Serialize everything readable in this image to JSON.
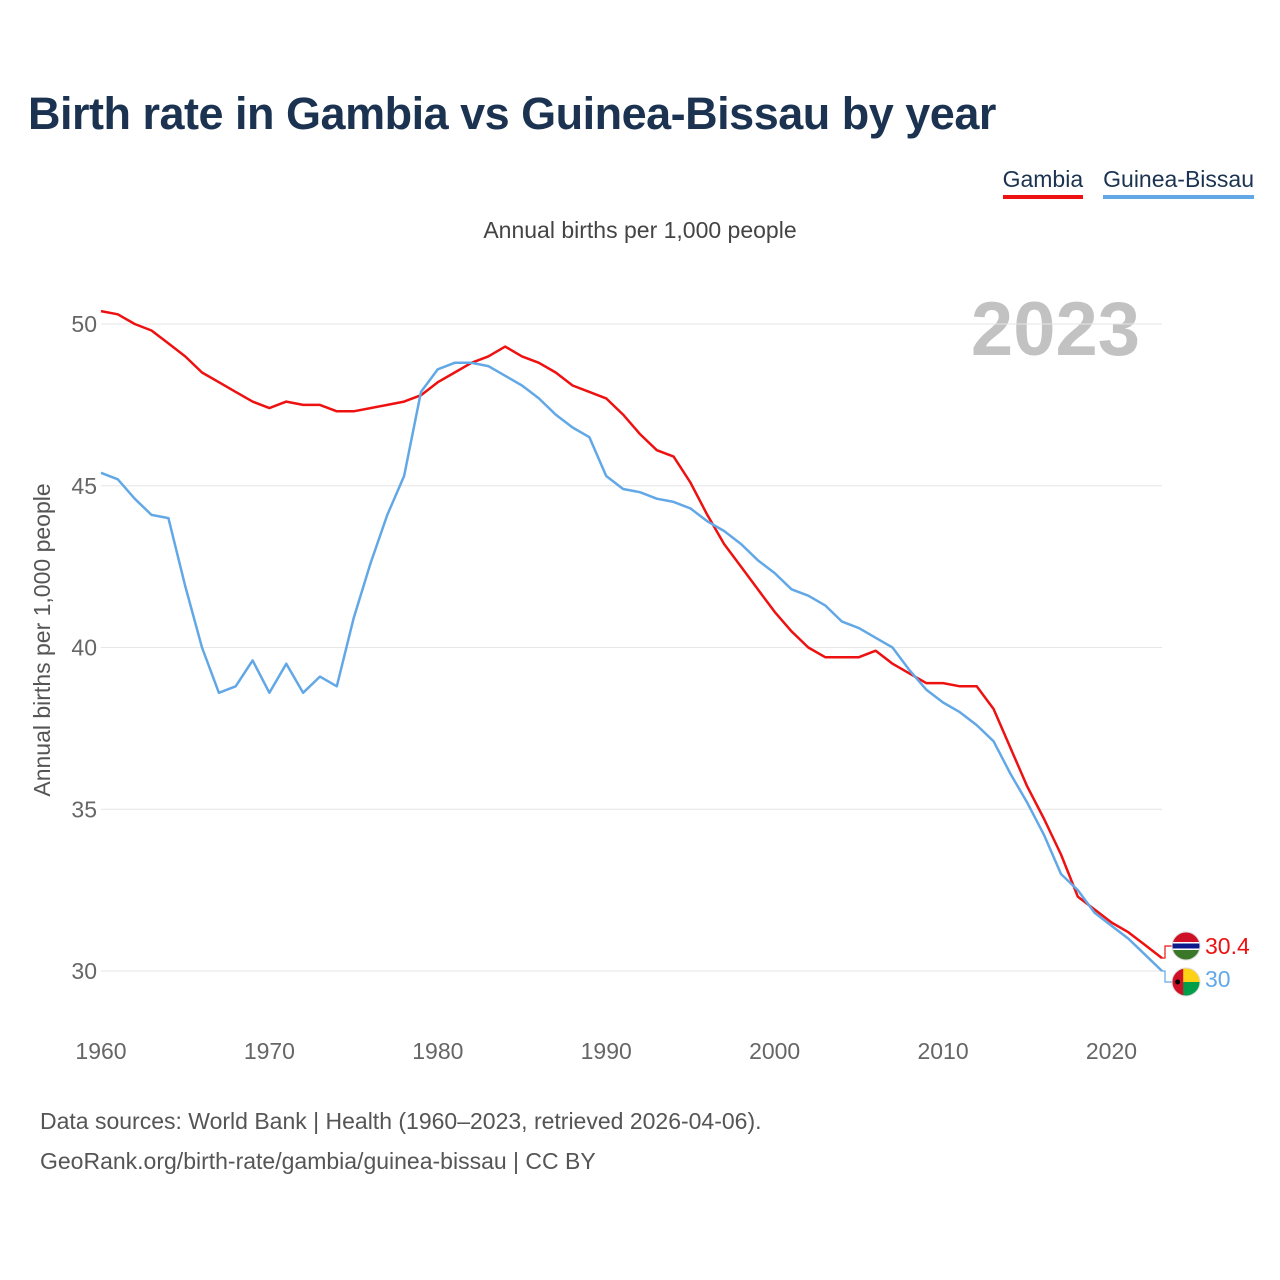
{
  "title": "Birth rate in Gambia vs Guinea-Bissau by year",
  "subtitle": "Annual births per 1,000 people",
  "year_display": "2023",
  "legend": [
    {
      "name": "Gambia",
      "color": "#ee1111"
    },
    {
      "name": "Guinea-Bissau",
      "color": "#62a8e6"
    }
  ],
  "footer": {
    "line1": "Data sources: World Bank | Health (1960–2023, retrieved 2026-04-06).",
    "line2": "GeoRank.org/birth-rate/gambia/guinea-bissau | CC BY"
  },
  "chart_data": {
    "type": "line",
    "title": "Birth rate in Gambia vs Guinea-Bissau by year",
    "xlabel": "",
    "ylabel": "Annual births per 1,000 people",
    "xlim": [
      1960,
      2023
    ],
    "ylim": [
      29,
      51
    ],
    "yticks": [
      30,
      35,
      40,
      45,
      50
    ],
    "xticks": [
      1960,
      1970,
      1980,
      1990,
      2000,
      2010,
      2020
    ],
    "grid": true,
    "legend_position": "top-right",
    "x": [
      1960,
      1961,
      1962,
      1963,
      1964,
      1965,
      1966,
      1967,
      1968,
      1969,
      1970,
      1971,
      1972,
      1973,
      1974,
      1975,
      1976,
      1977,
      1978,
      1979,
      1980,
      1981,
      1982,
      1983,
      1984,
      1985,
      1986,
      1987,
      1988,
      1989,
      1990,
      1991,
      1992,
      1993,
      1994,
      1995,
      1996,
      1997,
      1998,
      1999,
      2000,
      2001,
      2002,
      2003,
      2004,
      2005,
      2006,
      2007,
      2008,
      2009,
      2010,
      2011,
      2012,
      2013,
      2014,
      2015,
      2016,
      2017,
      2018,
      2019,
      2020,
      2021,
      2022,
      2023
    ],
    "series": [
      {
        "name": "Gambia",
        "color": "#ee1111",
        "end_label": "30.4",
        "values": [
          50.4,
          50.3,
          50.0,
          49.8,
          49.4,
          49.0,
          48.5,
          48.2,
          47.9,
          47.6,
          47.4,
          47.6,
          47.5,
          47.5,
          47.3,
          47.3,
          47.4,
          47.5,
          47.6,
          47.8,
          48.2,
          48.5,
          48.8,
          49.0,
          49.3,
          49.0,
          48.8,
          48.5,
          48.1,
          47.9,
          47.7,
          47.2,
          46.6,
          46.1,
          45.9,
          45.1,
          44.1,
          43.2,
          42.5,
          41.8,
          41.1,
          40.5,
          40.0,
          39.7,
          39.7,
          39.7,
          39.9,
          39.5,
          39.2,
          38.9,
          38.9,
          38.8,
          38.8,
          38.1,
          36.9,
          35.7,
          34.7,
          33.6,
          32.3,
          31.9,
          31.5,
          31.2,
          30.8,
          30.4
        ]
      },
      {
        "name": "Guinea-Bissau",
        "color": "#62a8e6",
        "end_label": "30",
        "values": [
          45.4,
          45.2,
          44.6,
          44.1,
          44.0,
          41.9,
          40.0,
          38.6,
          38.8,
          39.6,
          38.6,
          39.5,
          38.6,
          39.1,
          38.8,
          40.9,
          42.6,
          44.1,
          45.3,
          47.9,
          48.6,
          48.8,
          48.8,
          48.7,
          48.4,
          48.1,
          47.7,
          47.2,
          46.8,
          46.5,
          45.3,
          44.9,
          44.8,
          44.6,
          44.5,
          44.3,
          43.9,
          43.6,
          43.2,
          42.7,
          42.3,
          41.8,
          41.6,
          41.3,
          40.8,
          40.6,
          40.3,
          40.0,
          39.3,
          38.7,
          38.3,
          38.0,
          37.6,
          37.1,
          36.1,
          35.2,
          34.2,
          33.0,
          32.5,
          31.8,
          31.4,
          31.0,
          30.5,
          30.0
        ]
      }
    ]
  }
}
